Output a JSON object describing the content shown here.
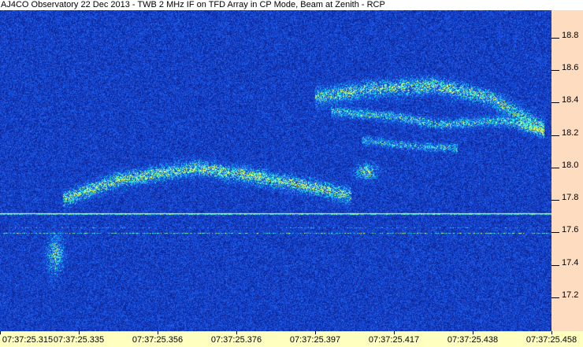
{
  "title": "AJ4CO Observatory 22 Dec 2013 - TWB 2 MHz IF on TFD Array in CP Mode, Beam at Zenith - RCP",
  "colors": {
    "background_noise": "#1030a0",
    "bright": "#40ffff",
    "peak": "#ffff40",
    "y_axis_panel": "#fddcc0",
    "x_axis_panel": "#ffffc0"
  },
  "chart_data": {
    "type": "heatmap",
    "title": "AJ4CO Observatory 22 Dec 2013 - TWB 2 MHz IF on TFD Array in CP Mode, Beam at Zenith - RCP",
    "xlabel": "",
    "ylabel": "",
    "x_ticks": [
      "07:37:25.315",
      "07:37:25.335",
      "07:37:25.356",
      "07:37:25.376",
      "07:37:25.397",
      "07:37:25.417",
      "07:37:25.438",
      "07:37:25.458"
    ],
    "y_ticks": [
      18.8,
      18.6,
      18.4,
      18.2,
      18.0,
      17.8,
      17.6,
      17.4,
      17.2
    ],
    "ylim": [
      16.99,
      18.97
    ],
    "y_axis_position": "right",
    "grid": false
  }
}
